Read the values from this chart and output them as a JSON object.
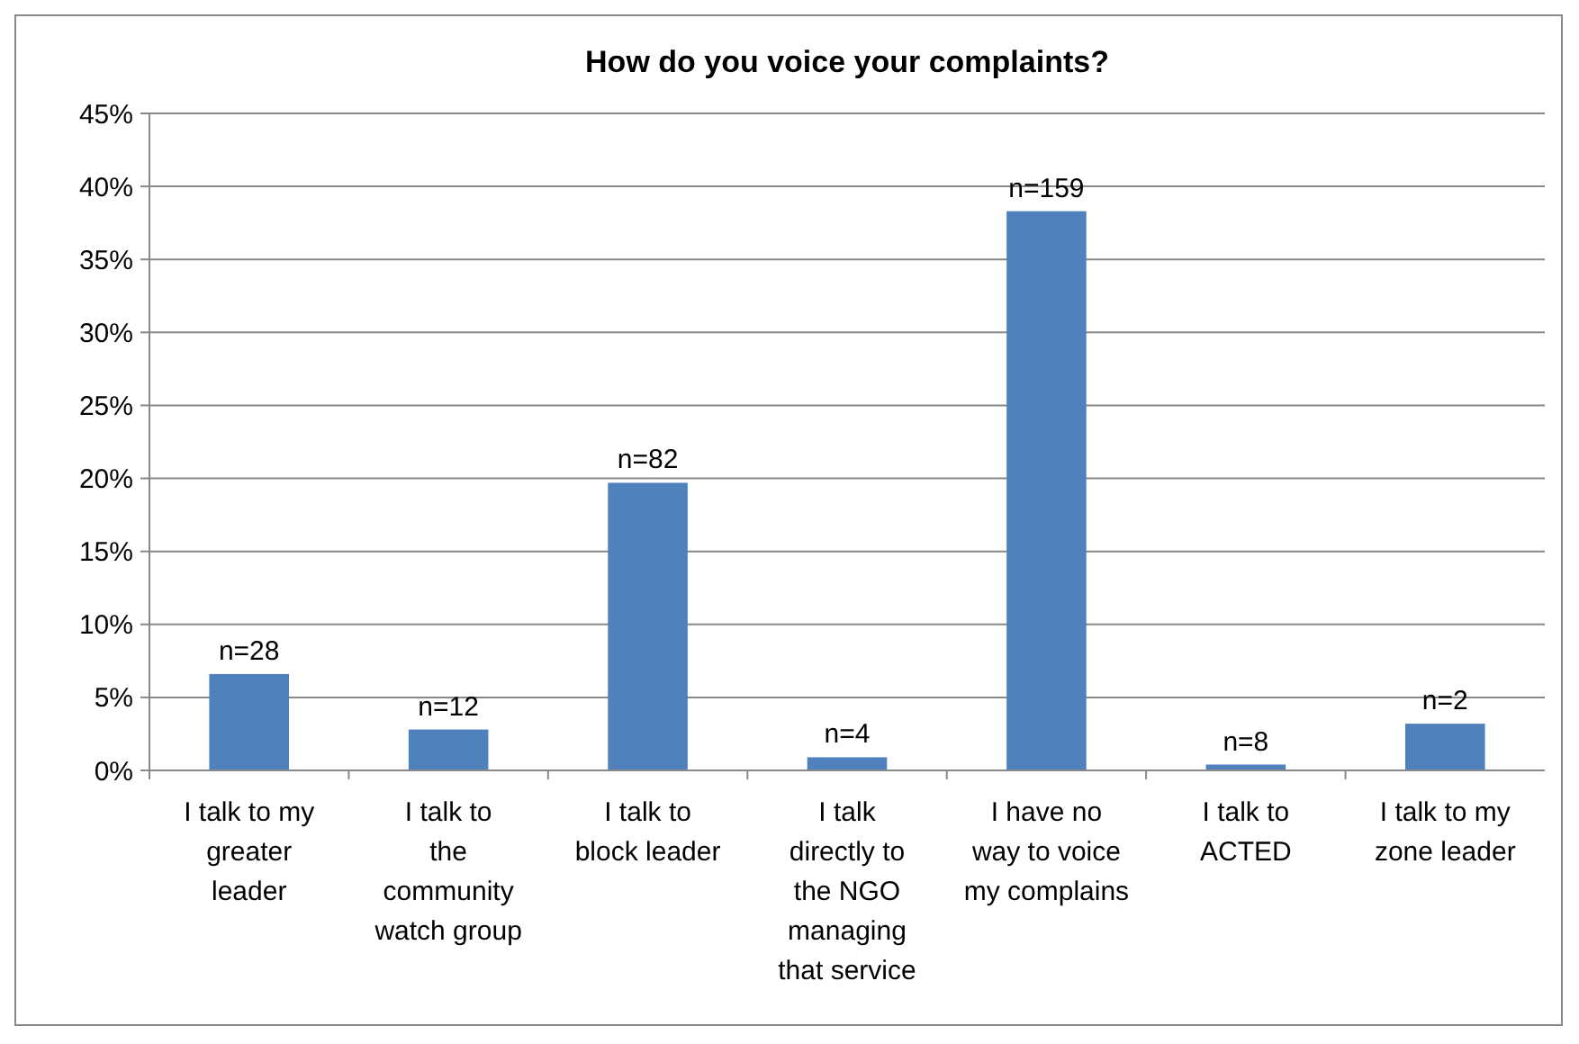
{
  "chart_data": {
    "type": "bar",
    "title": "How do you voice your complaints?",
    "categories": [
      "I talk to my greater leader",
      "I talk to the community watch group",
      "I talk to block leader",
      "I talk directly to the NGO managing that service",
      "I have no way to voice my complains",
      "I talk to ACTED",
      "I talk to my zone leader"
    ],
    "values": [
      0.066,
      0.028,
      0.197,
      0.009,
      0.383,
      0.004,
      0.032
    ],
    "annotations": [
      {
        "text": "n=28",
        "x": "I talk to my greater leader",
        "y": 0.066
      },
      {
        "text": "n=12",
        "x": "I talk to the community watch group",
        "y": 0.028
      },
      {
        "text": "n=82",
        "x": "I talk to block leader",
        "y": 0.197
      },
      {
        "text": "n=4",
        "x": "I talk directly to the NGO managing that service",
        "y": 0.009
      },
      {
        "text": "n=159",
        "x": "I have no way to voice my complains",
        "y": 0.383
      },
      {
        "text": "n=8",
        "x": "I talk to ACTED",
        "y": 0.004
      },
      {
        "text": "n=2",
        "x": "I talk to my zone leader",
        "y": 0.032
      }
    ],
    "color": "#4f81bd",
    "ylim": [
      0,
      0.45
    ],
    "yticks": [
      {
        "value": 0,
        "label": "0%"
      },
      {
        "value": 0.05,
        "label": "5%"
      },
      {
        "value": 0.1,
        "label": "10%"
      },
      {
        "value": 0.15,
        "label": "15%"
      },
      {
        "value": 0.2,
        "label": "20%"
      },
      {
        "value": 0.25,
        "label": "25%"
      },
      {
        "value": 0.3,
        "label": "30%"
      },
      {
        "value": 0.35,
        "label": "35%"
      },
      {
        "value": 0.4,
        "label": "40%"
      },
      {
        "value": 0.45,
        "label": "45%"
      }
    ],
    "grid": "y"
  }
}
